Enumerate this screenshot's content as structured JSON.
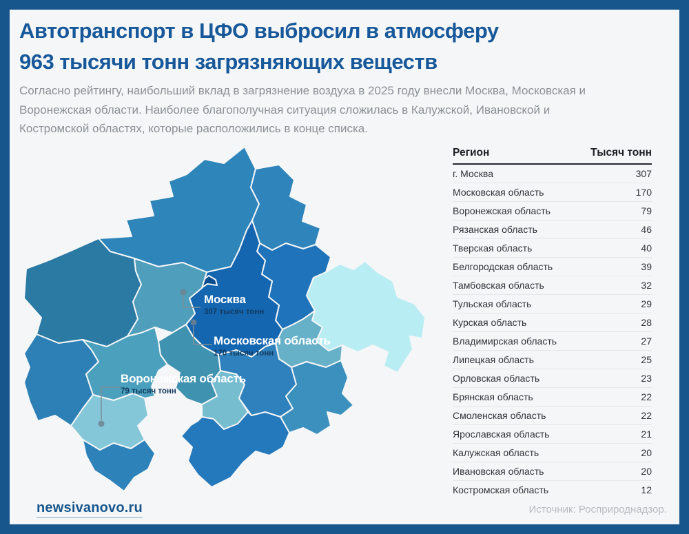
{
  "title": {
    "lines": [
      "Автотранспорт в ЦФО выбросил в атмосферу",
      "963 тысячи тонн загрязняющих веществ"
    ]
  },
  "intro": {
    "lines": [
      "Согласно рейтингу, наибольший вклад в загрязнение воздуха в 2025 году внесли Москва, Московская и",
      "Воронежская области. Наиболее благополучная ситуация сложилась в Калужской, Ивановской и",
      "Костромской областях, которые расположились в конце списка."
    ]
  },
  "chart_data": {
    "type": "table",
    "title": "Автотранспорт в ЦФО выбросил в атмосферу 963 тысячи тонн загрязняющих веществ",
    "note": "choropleth map of Central Federal District + ranking table, darker blue = higher emissions",
    "categories": [
      "г. Москва",
      "Московская область",
      "Воронежская область",
      "Рязанская область",
      "Тверская область",
      "Белгородская область",
      "Тамбовская область",
      "Тульская область",
      "Курская область",
      "Владимирская область",
      "Липецкая область",
      "Орловская область",
      "Брянская область",
      "Смоленская область",
      "Ярославская область",
      "Калужская область",
      "Ивановская область",
      "Костромская область"
    ],
    "values": [
      307,
      170,
      79,
      46,
      40,
      39,
      32,
      29,
      28,
      27,
      25,
      23,
      22,
      22,
      21,
      20,
      20,
      12
    ],
    "ylabel": "Тысяч тонн"
  },
  "table": {
    "headers": {
      "region": "Регион",
      "value": "Тысяч тонн"
    },
    "rows": [
      {
        "region": "г. Москва",
        "value": "307"
      },
      {
        "region": "Московская область",
        "value": "170"
      },
      {
        "region": "Воронежская область",
        "value": "79"
      },
      {
        "region": "Рязанская область",
        "value": "46"
      },
      {
        "region": "Тверская область",
        "value": "40"
      },
      {
        "region": "Белгородская область",
        "value": "39"
      },
      {
        "region": "Тамбовская область",
        "value": "32"
      },
      {
        "region": "Тульская область",
        "value": "29"
      },
      {
        "region": "Курская область",
        "value": "28"
      },
      {
        "region": "Владимирская область",
        "value": "27"
      },
      {
        "region": "Липецкая область",
        "value": "25"
      },
      {
        "region": "Орловская область",
        "value": "23"
      },
      {
        "region": "Брянская область",
        "value": "22"
      },
      {
        "region": "Смоленская область",
        "value": "22"
      },
      {
        "region": "Ярославская область",
        "value": "21"
      },
      {
        "region": "Калужская область",
        "value": "20"
      },
      {
        "region": "Ивановская область",
        "value": "20"
      },
      {
        "region": "Костромская область",
        "value": "12"
      }
    ]
  },
  "map": {
    "callouts": [
      {
        "name": "Москва",
        "value": "307 тысяч тонн"
      },
      {
        "name": "Московская область",
        "value": "170 тысяч тонн"
      },
      {
        "name": "Воронежская область",
        "value": "79 тысяч тонн"
      }
    ],
    "region_fills": [
      "#2e85ba",
      "#2f84bb",
      "#1f73ba",
      "#b9edf4",
      "#66b0c8",
      "#1466b0",
      "#0c4e8d",
      "#2a7aa4",
      "#4f9ebc",
      "#2d80b6",
      "#4aa0bd",
      "#84c7d8",
      "#2e82ba",
      "#3f93b0",
      "#76bdd0",
      "#2e81bc",
      "#3c90be",
      "#2478bc"
    ]
  },
  "footer": {
    "site": "newsivanovo.ru",
    "source": "Источник: Росприроднадзор."
  },
  "colors": {
    "accent_blue": "#17589b",
    "frame_border": "#16568d",
    "background": "#f5f6f7",
    "intro_gray": "#8a9096",
    "source_gray": "#b7bbbf",
    "callout_value_navy": "#133a5e"
  }
}
